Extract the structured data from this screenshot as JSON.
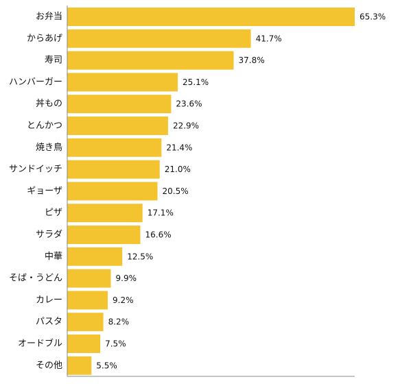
{
  "chart_data": {
    "type": "bar",
    "orientation": "horizontal",
    "categories": [
      "お弁当",
      "からあげ",
      "寿司",
      "ハンバーガー",
      "丼もの",
      "とんかつ",
      "焼き鳥",
      "サンドイッチ",
      "ギョーザ",
      "ピザ",
      "サラダ",
      "中華",
      "そば・うどん",
      "カレー",
      "パスタ",
      "オードブル",
      "その他"
    ],
    "values": [
      65.3,
      41.7,
      37.8,
      25.1,
      23.6,
      22.9,
      21.4,
      21.0,
      20.5,
      17.1,
      16.6,
      12.5,
      9.9,
      9.2,
      8.2,
      7.5,
      5.5
    ],
    "value_labels": [
      "65.3%",
      "41.7%",
      "37.8%",
      "25.1%",
      "23.6%",
      "22.9%",
      "21.4%",
      "21.0%",
      "20.5%",
      "17.1%",
      "16.6%",
      "12.5%",
      "9.9%",
      "9.2%",
      "8.2%",
      "7.5%",
      "5.5%"
    ],
    "title": "",
    "xlabel": "",
    "ylabel": "",
    "xlim": [
      0,
      65.3
    ],
    "grid": false,
    "legend": "none",
    "bar_color": "#f4c430",
    "axis_color": "#888888"
  }
}
